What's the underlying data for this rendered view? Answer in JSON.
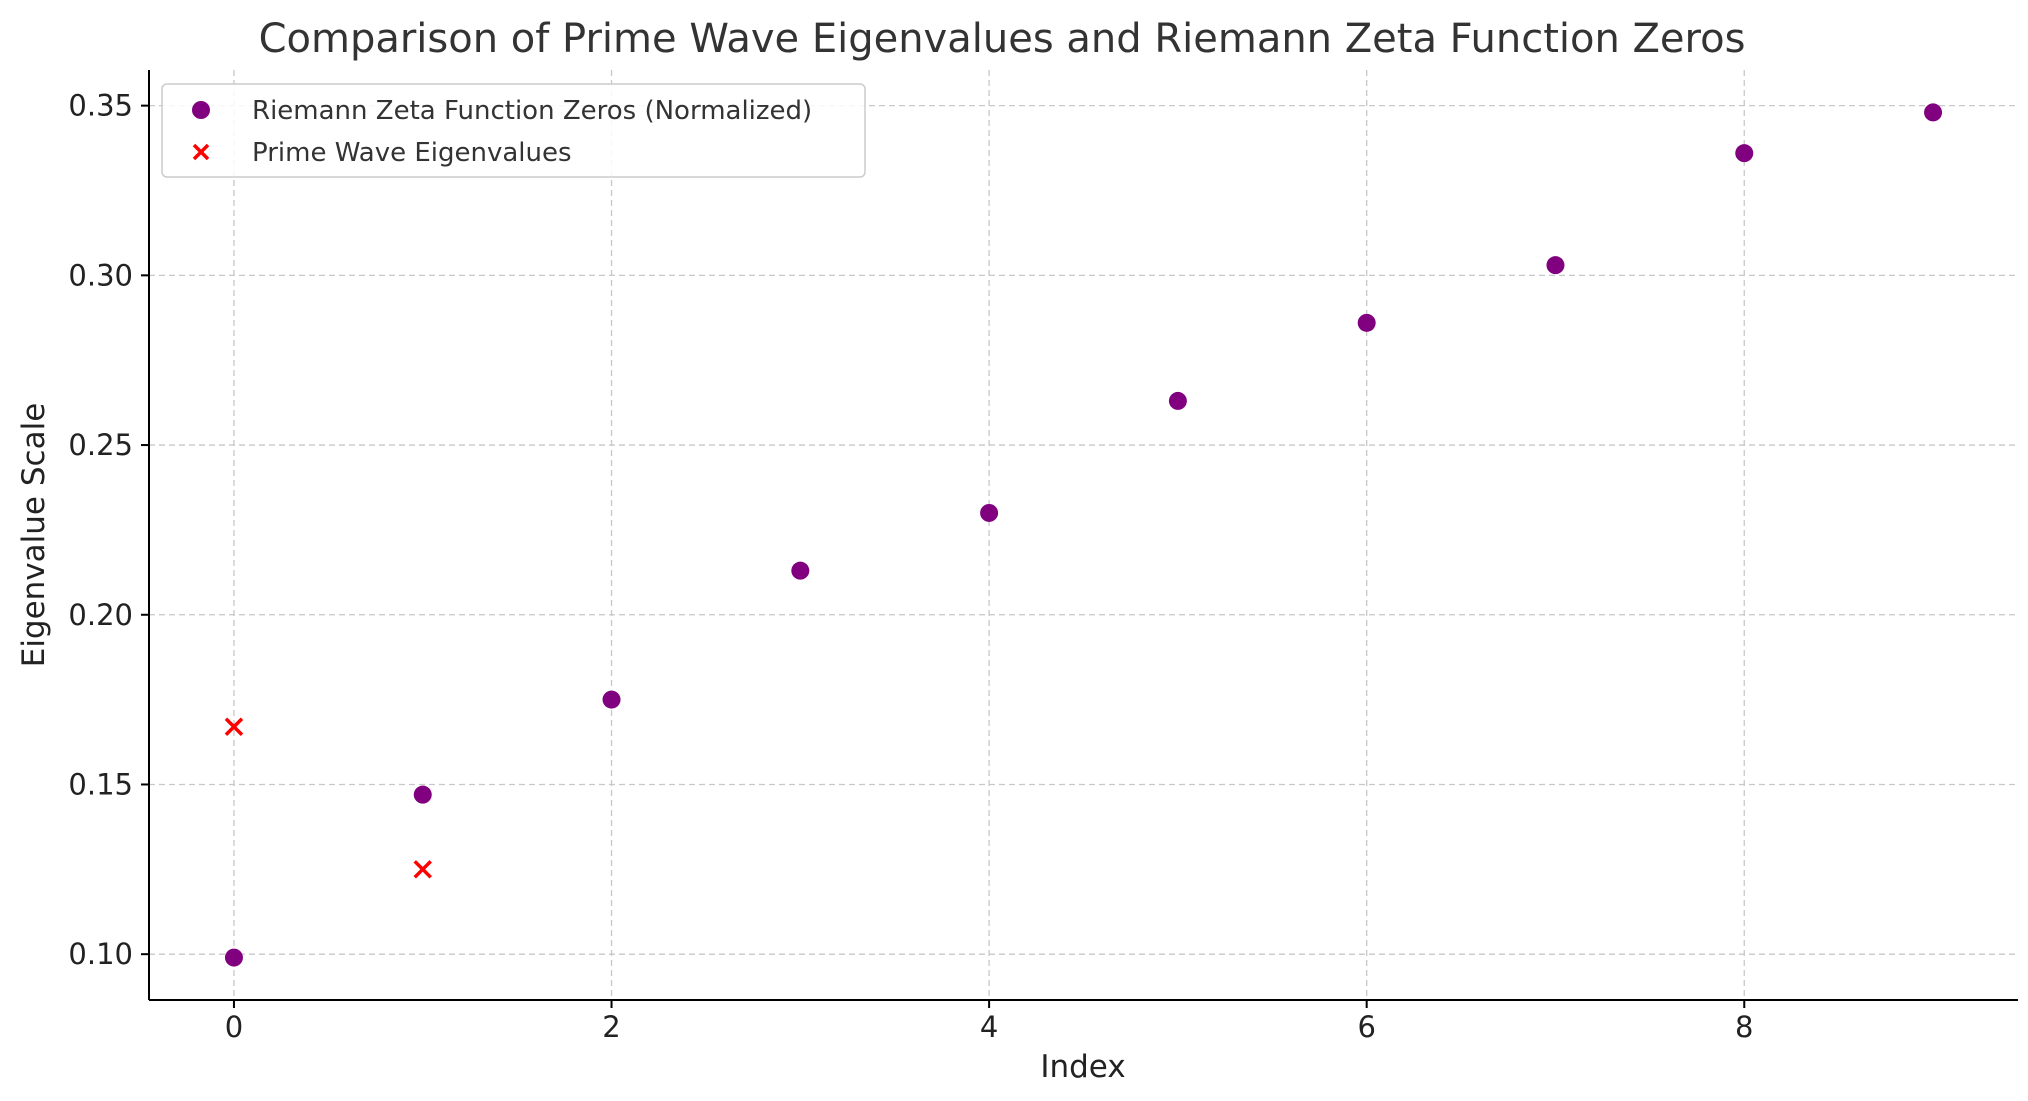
{
  "chart_data": {
    "type": "scatter",
    "title": "Comparison of Prime Wave Eigenvalues and Riemann Zeta Function Zeros",
    "xlabel": "Index",
    "ylabel": "Eigenvalue Scale",
    "xlim": [
      -0.45,
      9.45
    ],
    "ylim": [
      0.0865,
      0.3605
    ],
    "xticks": [
      0,
      2,
      4,
      6,
      8
    ],
    "yticks": [
      0.1,
      0.15,
      0.2,
      0.25,
      0.3,
      0.35
    ],
    "ytick_labels": [
      "0.10",
      "0.15",
      "0.20",
      "0.25",
      "0.30",
      "0.35"
    ],
    "grid": true,
    "legend_position": "top-left",
    "series": [
      {
        "name": "Riemann Zeta Function Zeros (Normalized)",
        "marker": "circle",
        "color": "#800080",
        "x": [
          0,
          1,
          2,
          3,
          4,
          5,
          6,
          7,
          8,
          9
        ],
        "y": [
          0.099,
          0.147,
          0.175,
          0.213,
          0.23,
          0.263,
          0.286,
          0.303,
          0.336,
          0.348
        ]
      },
      {
        "name": "Prime Wave Eigenvalues",
        "marker": "x",
        "color": "#ff0000",
        "x": [
          0,
          1
        ],
        "y": [
          0.167,
          0.125
        ]
      }
    ]
  }
}
